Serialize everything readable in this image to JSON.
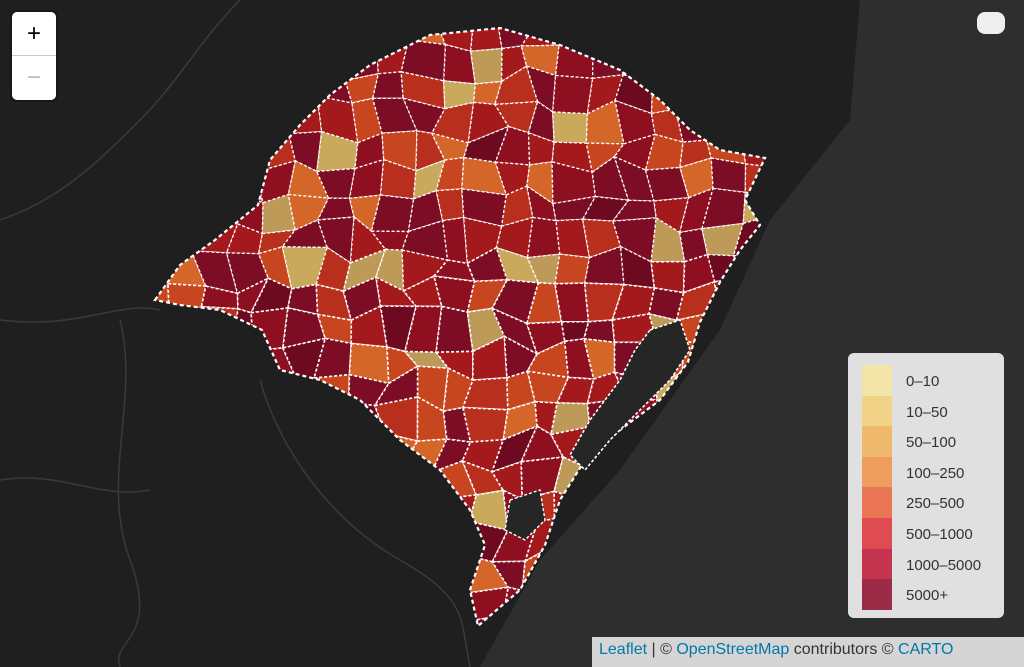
{
  "zoom_control": {
    "zoom_in": "+",
    "zoom_out": "−"
  },
  "legend": {
    "items": [
      {
        "label": "0–10",
        "color": "#f3e4a8"
      },
      {
        "label": "10–50",
        "color": "#f1d387"
      },
      {
        "label": "50–100",
        "color": "#efb96d"
      },
      {
        "label": "100–250",
        "color": "#ee9d5f"
      },
      {
        "label": "250–500",
        "color": "#eb7656"
      },
      {
        "label": "500–1000",
        "color": "#de4b50"
      },
      {
        "label": "1000–5000",
        "color": "#c5344f"
      },
      {
        "label": "5000+",
        "color": "#9b2b47"
      }
    ]
  },
  "attribution": {
    "leaflet": "Leaflet",
    "separator": "| ©",
    "osm": "OpenStreetMap",
    "contributors": "contributors ©",
    "carto": "CARTO"
  }
}
